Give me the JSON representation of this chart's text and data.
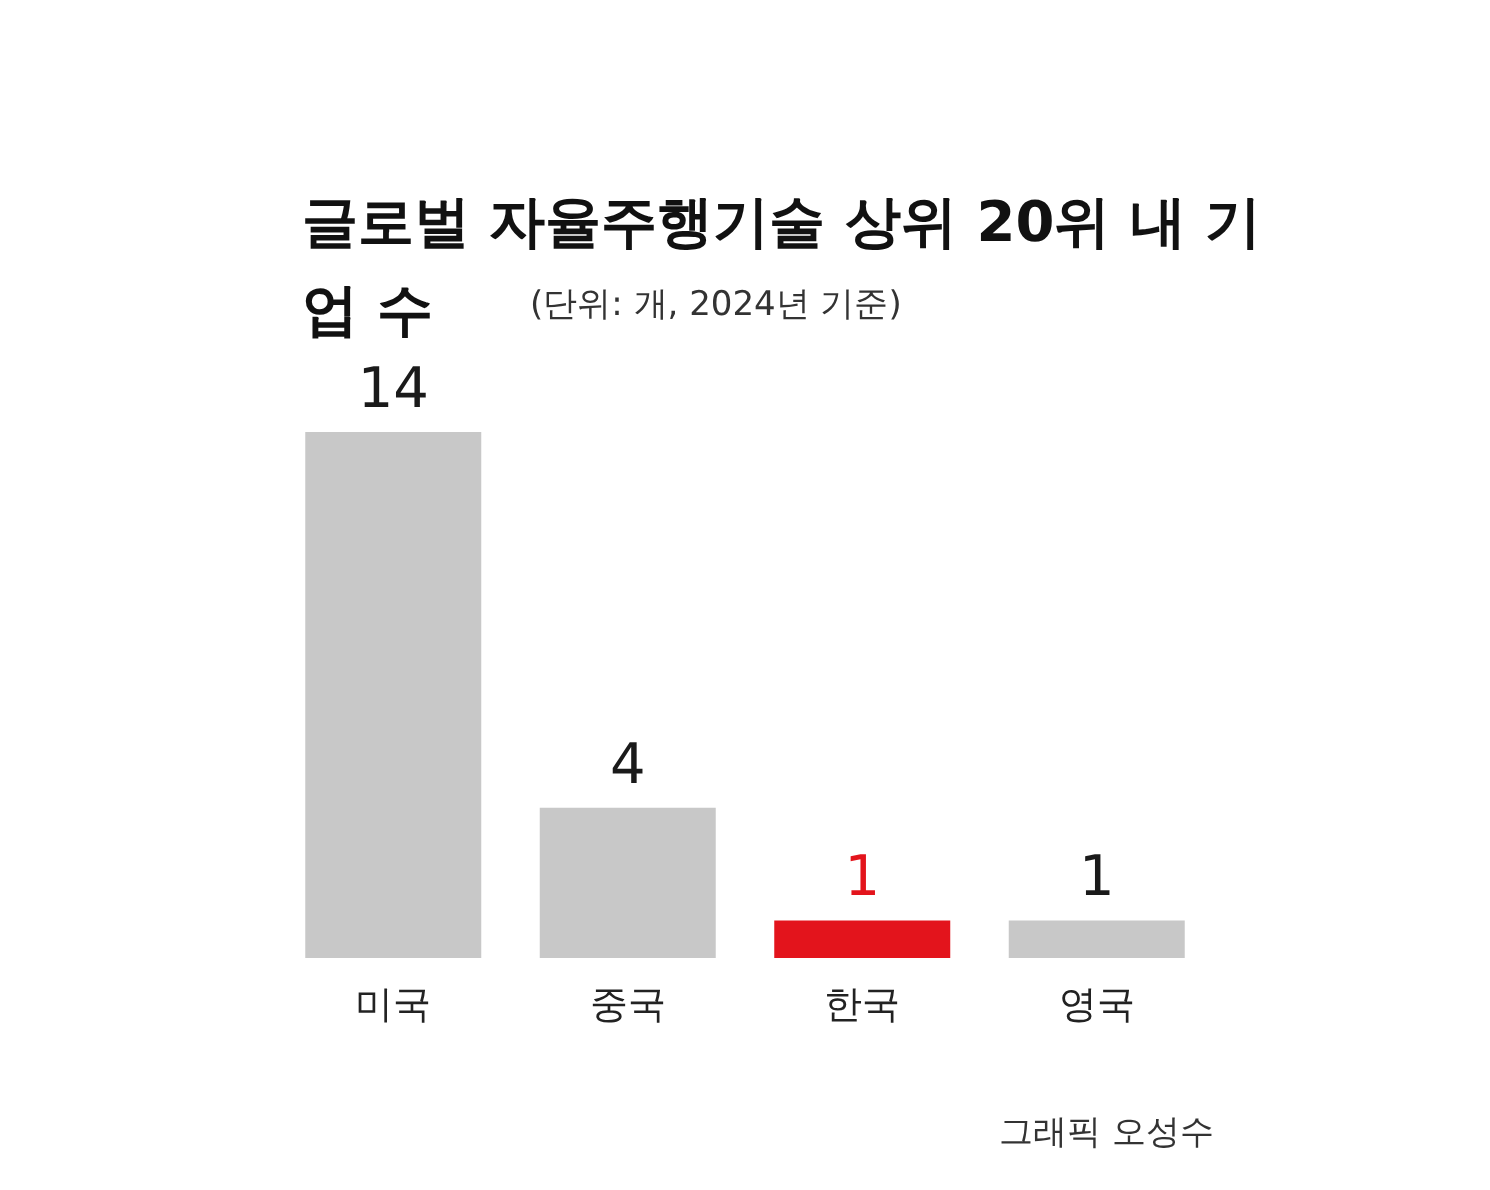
{
  "chart_data": {
    "type": "bar",
    "title": "글로벌 자율주행기술 상위 20위 내 기업 수",
    "subtitle": "(단위: 개, 2024년 기준)",
    "categories": [
      "미국",
      "중국",
      "한국",
      "영국"
    ],
    "values": [
      14,
      4,
      1,
      1
    ],
    "colors": [
      "#c8c8c8",
      "#c8c8c8",
      "#e3141c",
      "#c8c8c8"
    ],
    "relative": false,
    "data_labels": true,
    "annotations": [
      "그래픽 오성수"
    ]
  }
}
